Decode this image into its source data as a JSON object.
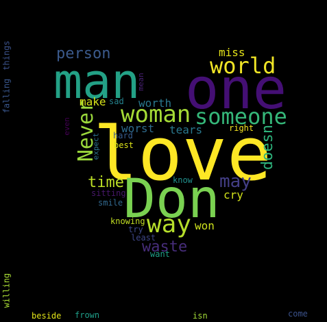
{
  "colors": {
    "background": "#000000"
  },
  "words": [
    {
      "text": "love",
      "color": "#fde725",
      "vertical": false
    },
    {
      "text": "Don",
      "color": "#7ad151",
      "vertical": false
    },
    {
      "text": "one",
      "color": "#440f74",
      "vertical": false
    },
    {
      "text": "man",
      "color": "#23a186",
      "vertical": false
    },
    {
      "text": "world",
      "color": "#f0e526",
      "vertical": false
    },
    {
      "text": "woman",
      "color": "#a5db36",
      "vertical": false
    },
    {
      "text": "someone",
      "color": "#35b779",
      "vertical": false
    },
    {
      "text": "way",
      "color": "#b5de2b",
      "vertical": false
    },
    {
      "text": "Never",
      "color": "#9bd93c",
      "vertical": true
    },
    {
      "text": "person",
      "color": "#3b5a8c",
      "vertical": false
    },
    {
      "text": "may",
      "color": "#433e85",
      "vertical": false
    },
    {
      "text": "doesn",
      "color": "#2eb37c",
      "vertical": true
    },
    {
      "text": "time",
      "color": "#bddf26",
      "vertical": false
    },
    {
      "text": "waste",
      "color": "#472d7b",
      "vertical": false
    },
    {
      "text": "miss",
      "color": "#e5e419",
      "vertical": false
    },
    {
      "text": "worth",
      "color": "#2a788e",
      "vertical": false
    },
    {
      "text": "make",
      "color": "#d8e219",
      "vertical": false
    },
    {
      "text": "worst",
      "color": "#2f6c8e",
      "vertical": false
    },
    {
      "text": "tears",
      "color": "#2a788e",
      "vertical": false
    },
    {
      "text": "cry",
      "color": "#d2e21b",
      "vertical": false
    },
    {
      "text": "won",
      "color": "#cde11d",
      "vertical": false
    },
    {
      "text": "sad",
      "color": "#25838e",
      "vertical": false
    },
    {
      "text": "hard",
      "color": "#365c8d",
      "vertical": false
    },
    {
      "text": "best",
      "color": "#dde318",
      "vertical": false
    },
    {
      "text": "right",
      "color": "#f8e621",
      "vertical": false
    },
    {
      "text": "mean",
      "color": "#482173",
      "vertical": true
    },
    {
      "text": "expect",
      "color": "#2c728e",
      "vertical": true
    },
    {
      "text": "even",
      "color": "#440154",
      "vertical": true
    },
    {
      "text": "know",
      "color": "#21908d",
      "vertical": false
    },
    {
      "text": "sitting",
      "color": "#48186a",
      "vertical": false
    },
    {
      "text": "smile",
      "color": "#31688e",
      "vertical": false
    },
    {
      "text": "knowing",
      "color": "#c2df23",
      "vertical": false
    },
    {
      "text": "try",
      "color": "#3e4a89",
      "vertical": false
    },
    {
      "text": "least",
      "color": "#3f4788",
      "vertical": false
    },
    {
      "text": "want",
      "color": "#1fa088",
      "vertical": false
    },
    {
      "text": "things",
      "color": "#3b528b",
      "vertical": true
    },
    {
      "text": "falling",
      "color": "#39568c",
      "vertical": true
    },
    {
      "text": "willing",
      "color": "#a8db34",
      "vertical": true
    },
    {
      "text": "beside",
      "color": "#e2e418",
      "vertical": false
    },
    {
      "text": "frown",
      "color": "#1f9e89",
      "vertical": false
    },
    {
      "text": "isn",
      "color": "#a2da37",
      "vertical": false
    },
    {
      "text": "come",
      "color": "#3b528b",
      "vertical": false
    }
  ]
}
